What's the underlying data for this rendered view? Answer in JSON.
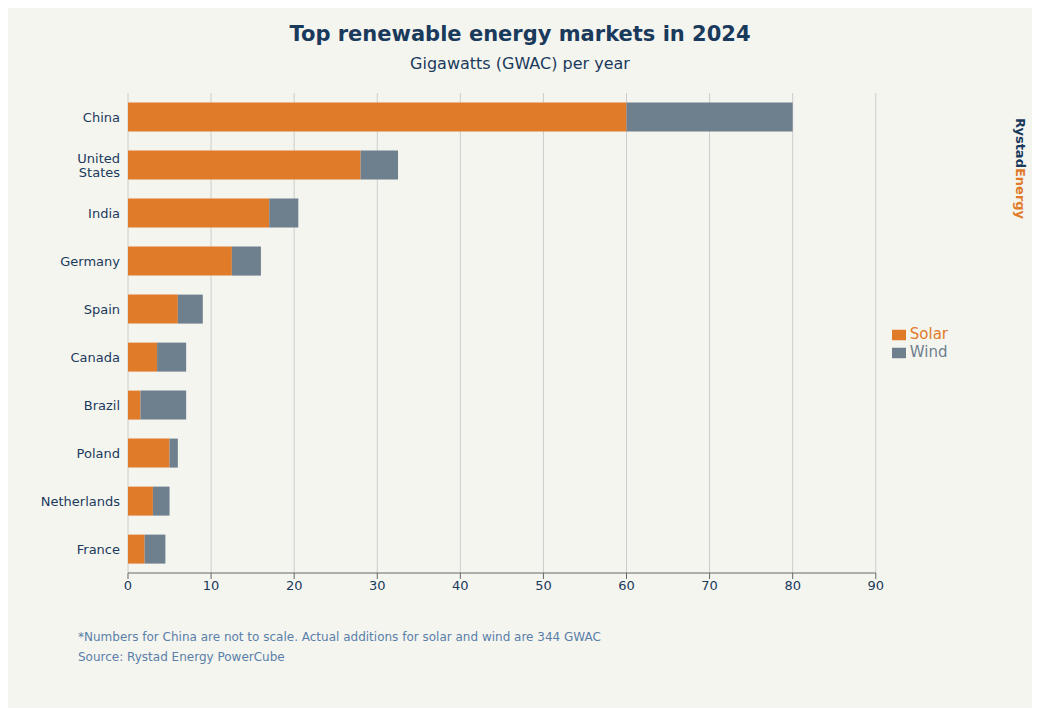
{
  "chart_data": {
    "type": "bar",
    "orientation": "horizontal",
    "stacked": true,
    "title": "Top renewable energy markets in 2024",
    "subtitle": "Gigawatts (GWAC) per year",
    "annotations": [
      "*Numbers for China are not to scale. Actual additions for solar and wind are 344 GWAC",
      "Source: Rystad Energy PowerCube",
      "Rystad",
      "Energy"
    ],
    "categories": [
      "France",
      "Netherlands",
      "Poland",
      "Brazil",
      "Canada",
      "Spain",
      "Germany",
      "India",
      "United\nStates",
      "China"
    ],
    "series": [
      {
        "name": "Solar",
        "color": "#E07B2A",
        "values": [
          2.0,
          3.0,
          5.0,
          1.5,
          3.5,
          6.0,
          12.5,
          17.0,
          28.0,
          60.0
        ]
      },
      {
        "name": "Wind",
        "color": "#6E7F8D",
        "values": [
          2.5,
          2.0,
          1.0,
          5.5,
          3.5,
          3.0,
          3.5,
          3.5,
          4.5,
          20.0
        ]
      }
    ],
    "xlim": [
      0,
      90
    ],
    "xticks": [
      0,
      10,
      20,
      30,
      40,
      50,
      60,
      70,
      80,
      90
    ],
    "grid": true,
    "legend": "right"
  }
}
